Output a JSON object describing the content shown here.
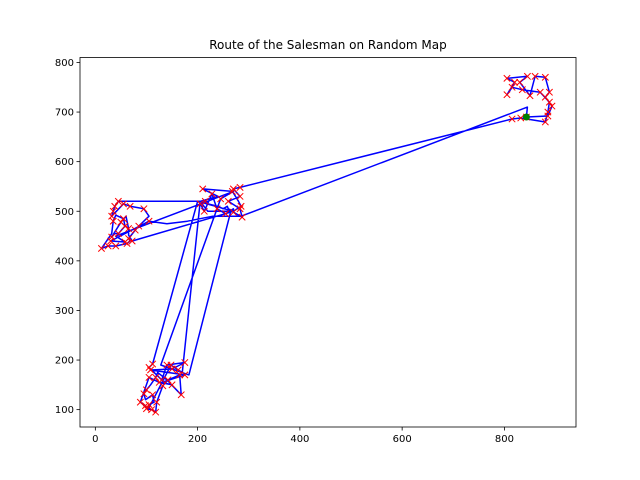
{
  "chart_data": {
    "type": "line",
    "title": "Route of the Salesman on Random Map",
    "xlabel": "",
    "ylabel": "",
    "xlim": [
      -30,
      940
    ],
    "ylim": [
      65,
      810
    ],
    "xticks": [
      0,
      200,
      400,
      600,
      800
    ],
    "yticks": [
      100,
      200,
      300,
      400,
      500,
      600,
      700,
      800
    ],
    "grid": false,
    "colors": {
      "route": "#0000ff",
      "cities": "#ff0000",
      "start": "#008000"
    },
    "start_point": {
      "x": 843,
      "y": 690
    },
    "route": [
      [
        843,
        690
      ],
      [
        885,
        692
      ],
      [
        893,
        712
      ],
      [
        880,
        730
      ],
      [
        888,
        740
      ],
      [
        880,
        770
      ],
      [
        860,
        772
      ],
      [
        850,
        733
      ],
      [
        830,
        760
      ],
      [
        845,
        772
      ],
      [
        805,
        768
      ],
      [
        820,
        760
      ],
      [
        805,
        735
      ],
      [
        815,
        750
      ],
      [
        835,
        745
      ],
      [
        870,
        740
      ],
      [
        888,
        720
      ],
      [
        885,
        700
      ],
      [
        880,
        680
      ],
      [
        832,
        688
      ],
      [
        815,
        686
      ],
      [
        283,
        548
      ],
      [
        270,
        545
      ],
      [
        283,
        530
      ],
      [
        260,
        520
      ],
      [
        283,
        505
      ],
      [
        287,
        488
      ],
      [
        270,
        498
      ],
      [
        270,
        505
      ],
      [
        255,
        495
      ],
      [
        238,
        505
      ],
      [
        228,
        535
      ],
      [
        213,
        500
      ],
      [
        205,
        515
      ],
      [
        215,
        520
      ],
      [
        220,
        515
      ],
      [
        240,
        510
      ],
      [
        250,
        505
      ],
      [
        258,
        510
      ],
      [
        260,
        505
      ],
      [
        270,
        500
      ],
      [
        285,
        510
      ],
      [
        280,
        520
      ],
      [
        268,
        540
      ],
      [
        210,
        545
      ],
      [
        240,
        530
      ],
      [
        205,
        520
      ],
      [
        45,
        520
      ],
      [
        38,
        510
      ],
      [
        35,
        500
      ],
      [
        32,
        490
      ],
      [
        55,
        515
      ],
      [
        68,
        510
      ],
      [
        95,
        505
      ],
      [
        105,
        490
      ],
      [
        85,
        470
      ],
      [
        78,
        462
      ],
      [
        65,
        445
      ],
      [
        68,
        440
      ],
      [
        62,
        435
      ],
      [
        40,
        430
      ],
      [
        25,
        430
      ],
      [
        12,
        425
      ],
      [
        32,
        455
      ],
      [
        35,
        480
      ],
      [
        40,
        492
      ],
      [
        55,
        485
      ],
      [
        58,
        470
      ],
      [
        45,
        455
      ],
      [
        38,
        455
      ],
      [
        32,
        448
      ],
      [
        50,
        478
      ],
      [
        60,
        490
      ],
      [
        65,
        465
      ],
      [
        65,
        452
      ],
      [
        72,
        440
      ],
      [
        270,
        500
      ],
      [
        200,
        520
      ],
      [
        112,
        192
      ],
      [
        105,
        185
      ],
      [
        130,
        160
      ],
      [
        140,
        190
      ],
      [
        175,
        195
      ],
      [
        150,
        182
      ],
      [
        108,
        180
      ],
      [
        175,
        170
      ],
      [
        130,
        155
      ],
      [
        150,
        150
      ],
      [
        125,
        155
      ],
      [
        105,
        165
      ],
      [
        88,
        115
      ],
      [
        98,
        108
      ],
      [
        100,
        102
      ],
      [
        110,
        100
      ],
      [
        118,
        95
      ],
      [
        120,
        115
      ],
      [
        132,
        148
      ],
      [
        142,
        160
      ],
      [
        165,
        170
      ],
      [
        168,
        130
      ],
      [
        140,
        160
      ],
      [
        122,
        175
      ],
      [
        118,
        165
      ],
      [
        108,
        150
      ],
      [
        100,
        140
      ],
      [
        95,
        132
      ],
      [
        98,
        120
      ],
      [
        112,
        130
      ],
      [
        115,
        115
      ],
      [
        105,
        110
      ],
      [
        103,
        100
      ],
      [
        148,
        190
      ],
      [
        162,
        180
      ],
      [
        170,
        175
      ],
      [
        205,
        520
      ],
      [
        220,
        500
      ],
      [
        265,
        500
      ],
      [
        183,
        170
      ],
      [
        128,
        190
      ],
      [
        245,
        525
      ],
      [
        270,
        540
      ],
      [
        40,
        450
      ],
      [
        58,
        438
      ],
      [
        30,
        440
      ],
      [
        105,
        480
      ],
      [
        140,
        475
      ],
      [
        180,
        480
      ],
      [
        230,
        490
      ],
      [
        285,
        490
      ],
      [
        845,
        710
      ],
      [
        843,
        690
      ]
    ],
    "cities": [
      [
        843,
        690
      ],
      [
        885,
        692
      ],
      [
        893,
        712
      ],
      [
        880,
        730
      ],
      [
        888,
        740
      ],
      [
        880,
        770
      ],
      [
        860,
        772
      ],
      [
        850,
        733
      ],
      [
        830,
        760
      ],
      [
        845,
        772
      ],
      [
        805,
        768
      ],
      [
        820,
        760
      ],
      [
        805,
        735
      ],
      [
        815,
        750
      ],
      [
        835,
        745
      ],
      [
        870,
        740
      ],
      [
        888,
        720
      ],
      [
        885,
        700
      ],
      [
        880,
        680
      ],
      [
        832,
        688
      ],
      [
        815,
        686
      ],
      [
        283,
        548
      ],
      [
        270,
        545
      ],
      [
        283,
        530
      ],
      [
        260,
        520
      ],
      [
        283,
        505
      ],
      [
        287,
        488
      ],
      [
        270,
        498
      ],
      [
        255,
        495
      ],
      [
        238,
        505
      ],
      [
        228,
        535
      ],
      [
        213,
        500
      ],
      [
        205,
        515
      ],
      [
        215,
        520
      ],
      [
        210,
        545
      ],
      [
        245,
        525
      ],
      [
        285,
        510
      ],
      [
        268,
        540
      ],
      [
        45,
        520
      ],
      [
        38,
        510
      ],
      [
        35,
        500
      ],
      [
        32,
        490
      ],
      [
        55,
        515
      ],
      [
        68,
        510
      ],
      [
        95,
        505
      ],
      [
        85,
        470
      ],
      [
        78,
        462
      ],
      [
        65,
        445
      ],
      [
        62,
        435
      ],
      [
        40,
        430
      ],
      [
        25,
        430
      ],
      [
        12,
        425
      ],
      [
        35,
        480
      ],
      [
        55,
        485
      ],
      [
        58,
        470
      ],
      [
        45,
        455
      ],
      [
        32,
        448
      ],
      [
        50,
        478
      ],
      [
        65,
        465
      ],
      [
        72,
        440
      ],
      [
        30,
        440
      ],
      [
        58,
        438
      ],
      [
        105,
        480
      ],
      [
        112,
        192
      ],
      [
        105,
        185
      ],
      [
        130,
        160
      ],
      [
        140,
        190
      ],
      [
        175,
        195
      ],
      [
        150,
        182
      ],
      [
        108,
        180
      ],
      [
        175,
        170
      ],
      [
        150,
        150
      ],
      [
        125,
        155
      ],
      [
        105,
        165
      ],
      [
        88,
        115
      ],
      [
        98,
        108
      ],
      [
        100,
        102
      ],
      [
        110,
        100
      ],
      [
        118,
        95
      ],
      [
        120,
        115
      ],
      [
        132,
        148
      ],
      [
        142,
        160
      ],
      [
        165,
        170
      ],
      [
        168,
        130
      ],
      [
        118,
        165
      ],
      [
        100,
        140
      ],
      [
        95,
        132
      ],
      [
        112,
        130
      ],
      [
        105,
        110
      ],
      [
        148,
        190
      ],
      [
        162,
        180
      ]
    ]
  }
}
